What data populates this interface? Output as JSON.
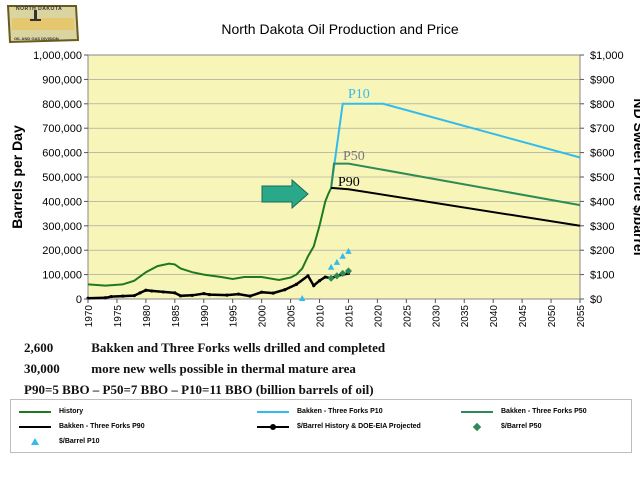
{
  "logo": {
    "line1": "NORTH DAKOTA",
    "line2": "OIL AND GAS DIVISION"
  },
  "notes": [
    {
      "number": "2,600",
      "text": "Bakken and Three Forks wells drilled and completed"
    },
    {
      "number": "30,000",
      "text": "more new wells possible in thermal mature area"
    },
    {
      "number": "",
      "text": "P90=5 BBO – P50=7 BBO – P10=11 BBO (billion barrels of oil)"
    }
  ],
  "colors": {
    "plot_bg": "#f8f5b8",
    "history": "#1f7a1f",
    "p10": "#33bbee",
    "p50": "#2e8b57",
    "p90": "#000000",
    "arrow": "#2aa88a",
    "price_p50": "#2e8b57"
  },
  "chart_data": {
    "type": "line",
    "title": "North Dakota Oil Production and Price",
    "ylabel": "Barrels per Day",
    "y2label": "ND Sweet Price $/barrel",
    "xlim": [
      1970,
      2055
    ],
    "ylim": [
      0,
      1000000
    ],
    "y2lim": [
      0,
      1000
    ],
    "x_ticks": [
      "1970",
      "1975",
      "1980",
      "1985",
      "1990",
      "1995",
      "2000",
      "2005",
      "2010",
      "2015",
      "2020",
      "2025",
      "2030",
      "2035",
      "2040",
      "2045",
      "2050",
      "2055"
    ],
    "y_ticks": [
      "0",
      "100,000",
      "200,000",
      "300,000",
      "400,000",
      "500,000",
      "600,000",
      "700,000",
      "800,000",
      "900,000",
      "1,000,000"
    ],
    "y2_ticks": [
      "$0",
      "$100",
      "$200",
      "$300",
      "$400",
      "$500",
      "$600",
      "$700",
      "$800",
      "$900",
      "$1,000"
    ],
    "annotations": [
      "P10",
      "P50",
      "P90"
    ],
    "legend": [
      "History",
      "Bakken - Three Forks P10",
      "Bakken - Three Forks P50",
      "Bakken - Three Forks P90",
      "$/Barrel History & DOE-EIA Projected",
      "$/Barrel P50",
      "$/Barrel P10"
    ],
    "series": [
      {
        "name": "History",
        "axis": "left",
        "kind": "line",
        "x": [
          1970,
          1973,
          1976,
          1978,
          1980,
          1982,
          1984,
          1985,
          1986,
          1988,
          1990,
          1993,
          1995,
          1997,
          2000,
          2003,
          2005,
          2006,
          2007,
          2008,
          2009,
          2010,
          2011,
          2011.5,
          2012
        ],
        "y": [
          60000,
          55000,
          60000,
          75000,
          110000,
          135000,
          145000,
          142000,
          125000,
          110000,
          100000,
          90000,
          82000,
          90000,
          90000,
          78000,
          88000,
          100000,
          125000,
          175000,
          215000,
          300000,
          400000,
          430000,
          455000
        ]
      },
      {
        "name": "Bakken - Three Forks P10",
        "axis": "left",
        "kind": "line",
        "x": [
          2012,
          2014,
          2021,
          2055
        ],
        "y": [
          455000,
          800000,
          800000,
          580000
        ]
      },
      {
        "name": "Bakken - Three Forks P50",
        "axis": "left",
        "kind": "line",
        "x": [
          2012,
          2012.5,
          2015,
          2055
        ],
        "y": [
          455000,
          555000,
          555000,
          385000
        ]
      },
      {
        "name": "Bakken - Three Forks P90",
        "axis": "left",
        "kind": "line",
        "x": [
          2012,
          2012.3,
          2015,
          2055
        ],
        "y": [
          455000,
          455000,
          450000,
          300000
        ]
      },
      {
        "name": "$/Barrel History & DOE-EIA Projected",
        "axis": "right",
        "kind": "line-dots",
        "x": [
          1970,
          1973,
          1974,
          1976,
          1978,
          1979,
          1980,
          1981,
          1983,
          1985,
          1986,
          1988,
          1990,
          1991,
          1994,
          1996,
          1998,
          2000,
          2002,
          2004,
          2006,
          2008,
          2009,
          2010,
          2011,
          2012,
          2013,
          2014,
          2015
        ],
        "y": [
          3,
          5,
          10,
          12,
          14,
          25,
          36,
          33,
          29,
          25,
          13,
          15,
          22,
          18,
          16,
          20,
          12,
          28,
          24,
          38,
          60,
          95,
          55,
          75,
          90,
          85,
          95,
          100,
          105
        ]
      },
      {
        "name": "$/Barrel P50",
        "axis": "right",
        "kind": "diamonds",
        "x": [
          2012,
          2013,
          2014,
          2015
        ],
        "y": [
          85,
          95,
          105,
          115
        ]
      },
      {
        "name": "$/Barrel P10",
        "axis": "right",
        "kind": "triangles",
        "x": [
          2007,
          2012,
          2013,
          2014,
          2015
        ],
        "y": [
          2,
          130,
          150,
          175,
          195
        ]
      }
    ]
  }
}
